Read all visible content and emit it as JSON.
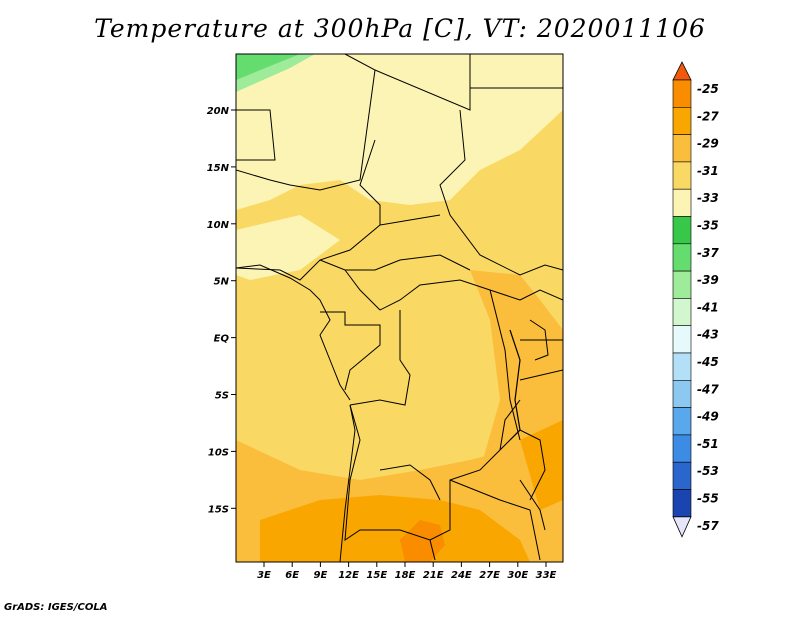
{
  "title": "Temperature at 300hPa [C], VT: 2020011106",
  "credit": "GrADS: IGES/COLA",
  "lat_labels": [
    "20N",
    "15N",
    "10N",
    "5N",
    "EQ",
    "5S",
    "10S",
    "15S"
  ],
  "lon_labels": [
    "3E",
    "6E",
    "9E",
    "12E",
    "15E",
    "18E",
    "21E",
    "24E",
    "27E",
    "30E",
    "33E"
  ],
  "colorbar": {
    "labels": [
      "-25",
      "-27",
      "-29",
      "-31",
      "-33",
      "-35",
      "-37",
      "-39",
      "-41",
      "-43",
      "-45",
      "-47",
      "-49",
      "-51",
      "-53",
      "-55",
      "-57"
    ],
    "colors": [
      "#f05a0a",
      "#fa8c00",
      "#f9a700",
      "#fbbd3c",
      "#fad864",
      "#fcf4b4",
      "#37c84a",
      "#64dc6e",
      "#9eeb9a",
      "#d2f7ce",
      "#e6fafc",
      "#b4e0f7",
      "#8cc8f0",
      "#5aa8ec",
      "#3c8ce6",
      "#2a66cc",
      "#1a44b0",
      "#141e8c",
      "#0c0c64"
    ],
    "top_arrow_color": "#f05a0a",
    "bottom_arrow_color": "#e6e6fa"
  },
  "map_colors": {
    "base": "#fad864",
    "light": "#fcf4b4",
    "mid": "#fbbd3c",
    "warm": "#f9a700",
    "hot": "#fa8c00",
    "green": "#64dc6e",
    "green_light": "#9eeb9a"
  }
}
